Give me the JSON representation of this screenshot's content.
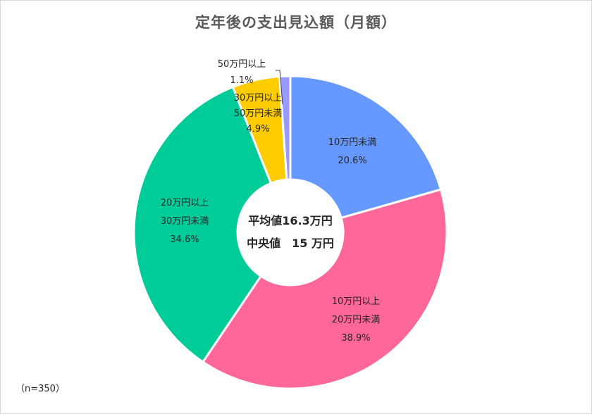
{
  "chart_data": {
    "type": "pie",
    "title": "定年後の支出見込額（月額）",
    "slices": [
      {
        "label_lines": [
          "10万円未満"
        ],
        "value": 20.6,
        "pct_text": "20.6%",
        "color": "#6699ff"
      },
      {
        "label_lines": [
          "10万円以上",
          "20万円未満"
        ],
        "value": 38.9,
        "pct_text": "38.9%",
        "color": "#ff6699"
      },
      {
        "label_lines": [
          "20万円以上",
          "30万円未満"
        ],
        "value": 34.6,
        "pct_text": "34.6%",
        "color": "#00cc99"
      },
      {
        "label_lines": [
          "30万円以上",
          "50万円未満"
        ],
        "value": 4.9,
        "pct_text": "4.9%",
        "color": "#ffcc00"
      },
      {
        "label_lines": [
          "50万円以上"
        ],
        "value": 1.1,
        "pct_text": "1.1%",
        "color": "#9999ff"
      }
    ],
    "center_text": [
      "平均値16.3万円",
      "中央値　15 万円"
    ],
    "note": "（n=350）"
  }
}
